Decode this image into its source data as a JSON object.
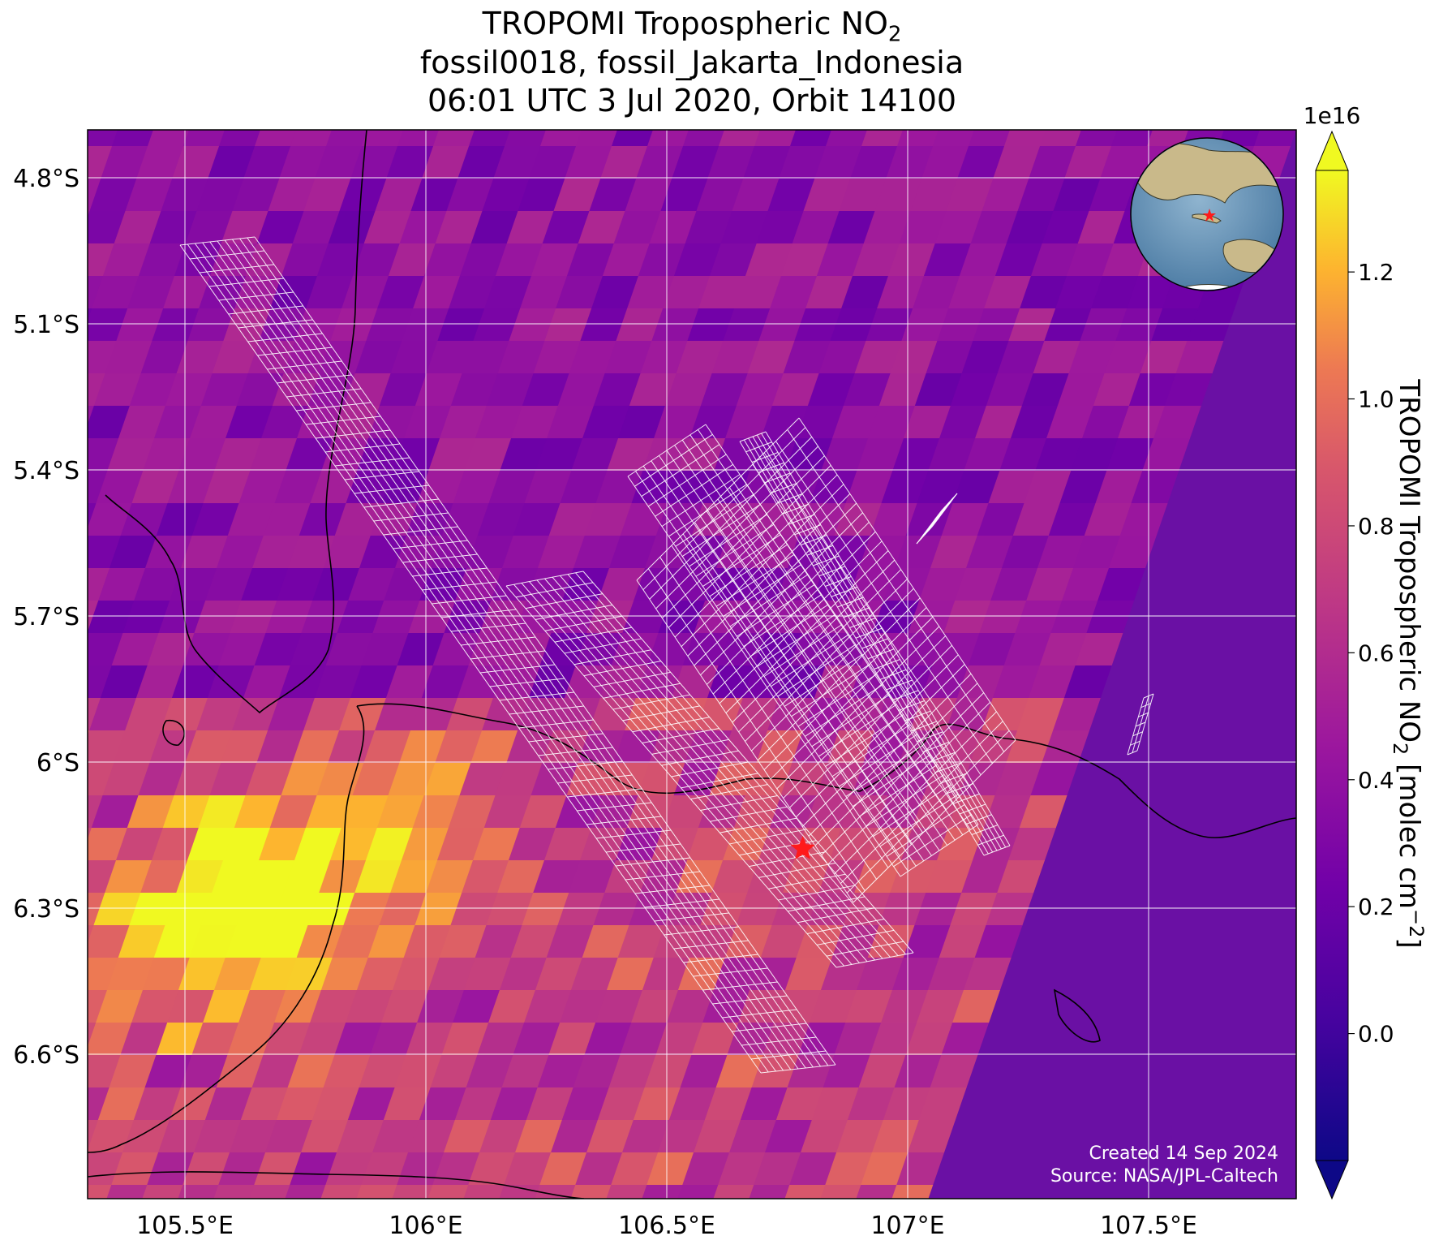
{
  "title": {
    "line1_main": "TROPOMI Tropospheric NO",
    "line1_sub": "2",
    "line2": "fossil0018, fossil_Jakarta_Indonesia",
    "line3": "06:01 UTC 3 Jul 2020, Orbit 14100"
  },
  "map": {
    "lon_ticks": [
      "105.5°E",
      "106°E",
      "106.5°E",
      "107°E",
      "107.5°E"
    ],
    "lat_ticks": [
      "4.8°S",
      "5.1°S",
      "5.4°S",
      "5.7°S",
      "6°S",
      "6.3°S",
      "6.6°S"
    ],
    "lon_range": [
      105.4,
      107.8
    ],
    "lat_range": [
      -6.9,
      -4.7
    ],
    "target_marker": "red-star",
    "target_lon": 106.82,
    "target_lat": -6.18
  },
  "colorbar": {
    "label_main": "TROPOMI Tropospheric NO",
    "label_sub": "2",
    "label_units": " [molec cm",
    "label_exp": "−2",
    "label_close": "]",
    "offset_text": "1e16",
    "ticks": [
      "0.0",
      "0.2",
      "0.4",
      "0.6",
      "0.8",
      "1.0",
      "1.2"
    ],
    "tick_values": [
      0.0,
      0.2,
      0.4,
      0.6,
      0.8,
      1.0,
      1.2
    ],
    "vmin": -0.2,
    "vmax": 1.36,
    "colormap": "plasma"
  },
  "credits": {
    "created": "Created 14 Sep 2024",
    "source": "Source: NASA/JPL-Caltech"
  },
  "colors": {
    "star": "#ff1a1a",
    "grid": "#ffffff",
    "background_low": "#5a0fa0",
    "hotspot": "#f4e13a"
  }
}
